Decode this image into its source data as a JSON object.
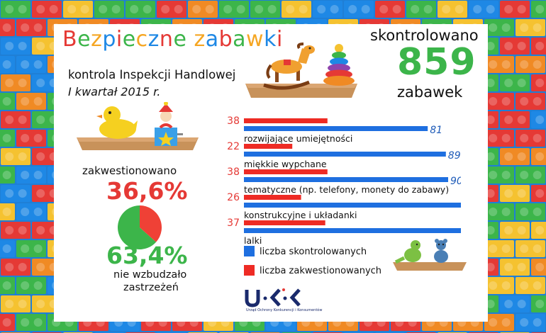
{
  "title": "Bezpieczne zabawki",
  "title_letter_colors": [
    "#e53935",
    "#3cb54a",
    "#f5a623",
    "#1e88e5",
    "#e53935",
    "#3cb54a",
    "#f5a623",
    "#1e88e5",
    "#e53935",
    "#3cb54a",
    "#f5a623",
    "#1e88e5",
    "#e53935",
    "#3cb54a",
    "#f5a623",
    "#1e88e5",
    "#e53935",
    "#3cb54a"
  ],
  "subtitle_line1": "kontrola Inspekcji Handlowej",
  "subtitle_line2": "I kwartał 2015 r.",
  "controlled": {
    "label": "skontrolowano",
    "number": "859",
    "unit": "zabawek"
  },
  "pie": {
    "questioned_label": "zakwestionowano",
    "questioned_percent": "36,6%",
    "questioned_value": 36.6,
    "ok_percent": "63,4%",
    "ok_value": 63.4,
    "ok_label_line1": "nie wzbudzało",
    "ok_label_line2": "zastrzeżeń",
    "colors": {
      "questioned": "#ef4136",
      "ok": "#3cb54a"
    }
  },
  "chart_data": {
    "type": "bar",
    "orientation": "horizontal",
    "categories": [
      "rozwijające umiejętności",
      "miękkie wypchane",
      "tematyczne (np. telefony, monety do zabawy)",
      "konstrukcyjne i układanki",
      "lalki"
    ],
    "series": [
      {
        "name": "liczba skontrolowanych",
        "values": [
          81,
          89,
          90,
          98,
          105
        ],
        "color": "#1e6fe0"
      },
      {
        "name": "liczba zakwestionowanych",
        "values": [
          38,
          22,
          38,
          26,
          37
        ],
        "color": "#ee2b24"
      }
    ],
    "legend_position": "bottom",
    "grid": false
  },
  "logo": {
    "mark": "U·K·K",
    "caption": "Urząd Ochrony Konkurencji i Konsumentów"
  },
  "illustrations": [
    "rocking-horse-icon",
    "ring-stacker-icon",
    "rubber-duck-icon",
    "jack-in-the-box-icon",
    "dinosaur-toy-icon",
    "teddy-bear-icon"
  ]
}
